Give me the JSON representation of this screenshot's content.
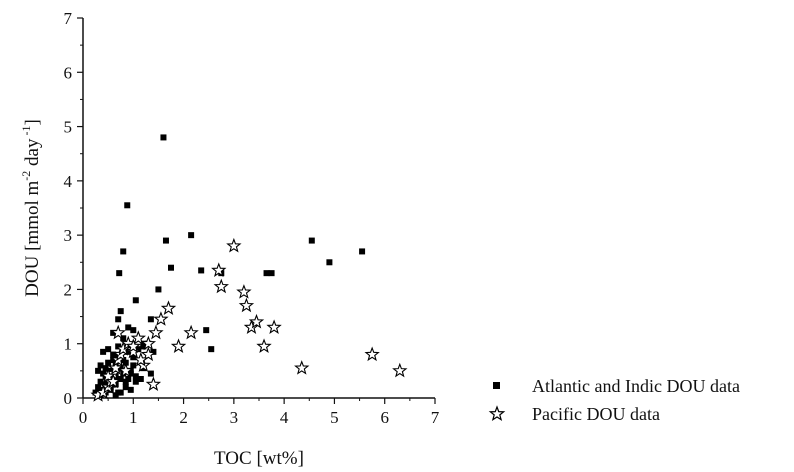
{
  "chart_data": {
    "type": "scatter",
    "xlabel": "TOC [wt%]",
    "ylabel": "DOU [mmol m",
    "ylabel_sup1": "-2",
    "ylabel_mid": " day",
    "ylabel_sup2": " -1",
    "ylabel_end": "]",
    "xlim": [
      0,
      7
    ],
    "ylim": [
      0,
      7
    ],
    "xticks": [
      0,
      1,
      2,
      3,
      4,
      5,
      6,
      7
    ],
    "yticks": [
      0,
      1,
      2,
      3,
      4,
      5,
      6,
      7
    ],
    "legend_position": "bottom-right",
    "series": [
      {
        "name": "Atlantic and Indic DOU data",
        "marker": "square",
        "color": "#000000",
        "x": [
          0.25,
          0.3,
          0.35,
          0.4,
          0.45,
          0.5,
          0.55,
          0.6,
          0.65,
          0.7,
          0.3,
          0.35,
          0.4,
          0.45,
          0.5,
          0.55,
          0.6,
          0.65,
          0.7,
          0.75,
          0.8,
          0.85,
          0.9,
          0.95,
          1.0,
          0.4,
          0.5,
          0.6,
          0.7,
          0.8,
          0.9,
          1.0,
          1.1,
          1.2,
          1.3,
          1.4,
          0.45,
          0.55,
          0.65,
          0.75,
          0.85,
          0.95,
          1.05,
          1.15,
          0.6,
          0.8,
          1.0,
          1.2,
          0.35,
          0.45,
          0.55,
          0.65,
          0.75,
          0.85,
          0.95,
          1.05,
          1.2,
          1.35,
          0.7,
          0.9,
          0.8,
          0.72,
          0.75,
          0.88,
          1.05,
          1.35,
          1.5,
          1.6,
          1.65,
          1.75,
          2.15,
          2.35,
          2.45,
          2.55,
          2.75,
          3.65,
          3.75,
          4.55,
          4.9,
          5.55
        ],
        "y": [
          0.1,
          0.2,
          0.3,
          0.15,
          0.25,
          0.35,
          0.2,
          0.3,
          0.4,
          0.1,
          0.5,
          0.6,
          0.45,
          0.55,
          0.65,
          0.5,
          0.7,
          0.6,
          0.75,
          0.55,
          0.45,
          0.65,
          0.35,
          0.5,
          0.6,
          0.85,
          0.9,
          0.8,
          0.95,
          0.7,
          0.85,
          0.75,
          0.9,
          0.95,
          1.0,
          0.85,
          0.4,
          0.3,
          0.25,
          0.35,
          0.3,
          0.45,
          0.4,
          0.35,
          1.2,
          1.1,
          1.25,
          1.0,
          0.05,
          0.1,
          0.15,
          0.05,
          0.1,
          0.2,
          0.15,
          0.3,
          0.55,
          0.45,
          1.45,
          1.3,
          2.7,
          2.3,
          1.6,
          3.55,
          1.8,
          1.45,
          2.0,
          4.8,
          2.9,
          2.4,
          3.0,
          2.35,
          1.25,
          0.9,
          2.3,
          2.3,
          2.3,
          2.9,
          2.5,
          2.7
        ]
      },
      {
        "name": "Pacific DOU data",
        "marker": "star",
        "color": "#000000",
        "x": [
          0.3,
          0.4,
          0.5,
          0.55,
          0.6,
          0.65,
          0.7,
          0.75,
          0.8,
          0.9,
          1.0,
          1.1,
          1.2,
          1.3,
          1.4,
          0.5,
          0.6,
          0.7,
          0.85,
          1.0,
          1.15,
          1.3,
          1.45,
          1.55,
          1.7,
          1.9,
          2.15,
          2.7,
          2.75,
          3.0,
          3.2,
          3.25,
          3.35,
          3.45,
          3.6,
          3.8,
          4.35,
          5.75,
          6.3
        ],
        "y": [
          0.05,
          0.1,
          0.2,
          0.3,
          0.45,
          0.55,
          0.7,
          0.8,
          0.9,
          1.0,
          0.85,
          1.1,
          0.6,
          0.8,
          0.25,
          0.4,
          0.3,
          1.2,
          0.5,
          0.95,
          0.7,
          1.0,
          1.2,
          1.45,
          1.65,
          0.95,
          1.2,
          2.35,
          2.05,
          2.8,
          1.95,
          1.7,
          1.3,
          1.4,
          0.95,
          1.3,
          0.55,
          0.8,
          0.5
        ]
      }
    ]
  }
}
